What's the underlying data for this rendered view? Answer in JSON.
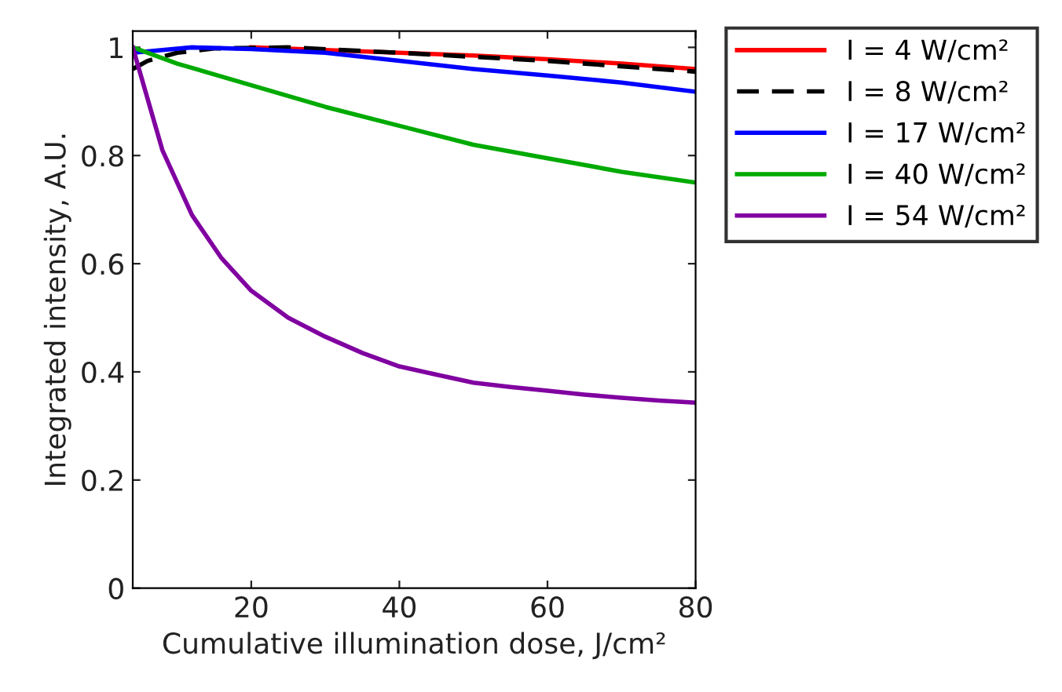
{
  "chart_data": {
    "type": "line",
    "xlabel": "Cumulative illumination dose, J/cm²",
    "ylabel": "Integrated intensity, A.U.",
    "xlim": [
      4,
      80
    ],
    "xticks": [
      20,
      40,
      60,
      80
    ],
    "ylim": [
      0,
      1.03
    ],
    "yticks": [
      0,
      0.2,
      0.4,
      0.6,
      0.8,
      1
    ],
    "grid": false,
    "legend": "top right",
    "marker": "none",
    "series": [
      {
        "name": "I = 4 W/cm²",
        "color": "#ff0000",
        "line_style": "solid",
        "x": [
          20,
          30,
          40,
          50,
          60,
          70,
          80
        ],
        "values": [
          1.0,
          0.995,
          0.99,
          0.985,
          0.978,
          0.97,
          0.96
        ]
      },
      {
        "name": "I = 8 W/cm²",
        "color": "#000000",
        "line_style": "dashed",
        "x": [
          4,
          6,
          10,
          15,
          25,
          40,
          60,
          80
        ],
        "values": [
          0.96,
          0.975,
          0.99,
          0.998,
          1.0,
          0.99,
          0.975,
          0.955
        ]
      },
      {
        "name": "I = 17 W/cm²",
        "color": "#0000ff",
        "line_style": "solid",
        "x": [
          4,
          8,
          12,
          20,
          30,
          40,
          50,
          60,
          70,
          80
        ],
        "values": [
          0.99,
          0.995,
          1.0,
          0.997,
          0.99,
          0.975,
          0.96,
          0.948,
          0.935,
          0.918
        ]
      },
      {
        "name": "I = 40 W/cm²",
        "color": "#00aa00",
        "line_style": "solid",
        "x": [
          4,
          10,
          20,
          30,
          40,
          50,
          60,
          70,
          80
        ],
        "values": [
          1.0,
          0.97,
          0.93,
          0.89,
          0.855,
          0.82,
          0.795,
          0.77,
          0.75
        ]
      },
      {
        "name": "I = 54 W/cm²",
        "color": "#8000a0",
        "line_style": "solid",
        "x": [
          4,
          8,
          12,
          16,
          20,
          25,
          30,
          35,
          40,
          45,
          50,
          55,
          60,
          65,
          70,
          75,
          80
        ],
        "values": [
          1.0,
          0.81,
          0.69,
          0.61,
          0.55,
          0.5,
          0.465,
          0.435,
          0.41,
          0.395,
          0.38,
          0.372,
          0.365,
          0.358,
          0.352,
          0.347,
          0.343
        ]
      }
    ]
  }
}
